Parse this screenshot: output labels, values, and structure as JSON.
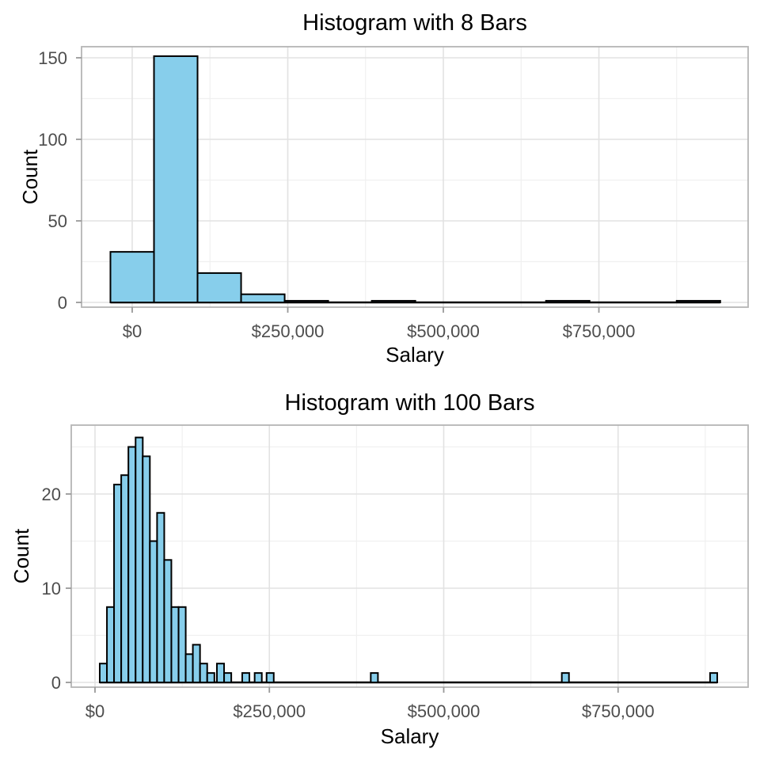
{
  "figure": {
    "background": "#ffffff",
    "style": {
      "bar_fill": "#87CEEB",
      "bar_stroke": "#000000",
      "baseline_color": "#000000",
      "grid_major": "#E2E2E2",
      "grid_minor": "#F0F0F0",
      "panel_border": "#B5B5B5",
      "panel_background": "#FFFFFF",
      "tick_mark_color": "#999999",
      "tick_label_color": "#4D4D4D",
      "title_color": "#000000",
      "axis_title_color": "#000000"
    }
  },
  "chart_data": [
    {
      "type": "bar",
      "title": "Histogram with 8 Bars",
      "xlabel": "Salary",
      "ylabel": "Count",
      "grid": true,
      "legend": null,
      "bin_width": 70000,
      "bars": [
        {
          "x0": -35000,
          "count": 31
        },
        {
          "x0": 35000,
          "count": 151
        },
        {
          "x0": 105000,
          "count": 18
        },
        {
          "x0": 175000,
          "count": 5
        },
        {
          "x0": 245000,
          "count": 1
        },
        {
          "x0": 385000,
          "count": 1
        },
        {
          "x0": 665000,
          "count": 1
        },
        {
          "x0": 875000,
          "count": 1
        }
      ],
      "baseline_span": [
        -35000,
        945000
      ],
      "x_ticks": [
        {
          "value": 0,
          "label": "$0"
        },
        {
          "value": 250000,
          "label": "$250,000"
        },
        {
          "value": 500000,
          "label": "$500,000"
        },
        {
          "value": 750000,
          "label": "$750,000"
        }
      ],
      "x_minor": [
        125000,
        375000,
        625000,
        875000
      ],
      "y_ticks": [
        {
          "value": 0,
          "label": "0"
        },
        {
          "value": 50,
          "label": "50"
        },
        {
          "value": 100,
          "label": "100"
        },
        {
          "value": 150,
          "label": "150"
        }
      ],
      "y_minor": [
        25,
        75,
        125
      ],
      "xlim": [
        -84000,
        994000
      ],
      "ylim": [
        0,
        157
      ]
    },
    {
      "type": "bar",
      "title": "Histogram with 100 Bars",
      "xlabel": "Salary",
      "ylabel": "Count",
      "grid": true,
      "legend": null,
      "bin_width": 10270,
      "bars": [
        {
          "x0": 6800,
          "count": 2
        },
        {
          "x0": 17100,
          "count": 8
        },
        {
          "x0": 27300,
          "count": 21
        },
        {
          "x0": 37600,
          "count": 22
        },
        {
          "x0": 47900,
          "count": 25
        },
        {
          "x0": 58200,
          "count": 26
        },
        {
          "x0": 68400,
          "count": 24
        },
        {
          "x0": 78700,
          "count": 15
        },
        {
          "x0": 89000,
          "count": 18
        },
        {
          "x0": 99200,
          "count": 13
        },
        {
          "x0": 109500,
          "count": 8
        },
        {
          "x0": 119800,
          "count": 8
        },
        {
          "x0": 130000,
          "count": 3
        },
        {
          "x0": 140300,
          "count": 4
        },
        {
          "x0": 150600,
          "count": 2
        },
        {
          "x0": 160900,
          "count": 1
        },
        {
          "x0": 174800,
          "count": 2
        },
        {
          "x0": 185100,
          "count": 1
        },
        {
          "x0": 211100,
          "count": 1
        },
        {
          "x0": 228900,
          "count": 1
        },
        {
          "x0": 246000,
          "count": 1
        },
        {
          "x0": 395400,
          "count": 1
        },
        {
          "x0": 669300,
          "count": 1
        },
        {
          "x0": 881900,
          "count": 1
        }
      ],
      "baseline_span": [
        6800,
        892200
      ],
      "x_ticks": [
        {
          "value": 0,
          "label": "$0"
        },
        {
          "value": 250000,
          "label": "$250,000"
        },
        {
          "value": 500000,
          "label": "$500,000"
        },
        {
          "value": 750000,
          "label": "$750,000"
        }
      ],
      "x_minor": [
        125000,
        375000,
        625000,
        875000
      ],
      "y_ticks": [
        {
          "value": 0,
          "label": "0"
        },
        {
          "value": 10,
          "label": "10"
        },
        {
          "value": 20,
          "label": "20"
        }
      ],
      "y_minor": [
        5,
        15,
        25
      ],
      "xlim": [
        -34000,
        936000
      ],
      "ylim": [
        0,
        27.5
      ]
    }
  ]
}
